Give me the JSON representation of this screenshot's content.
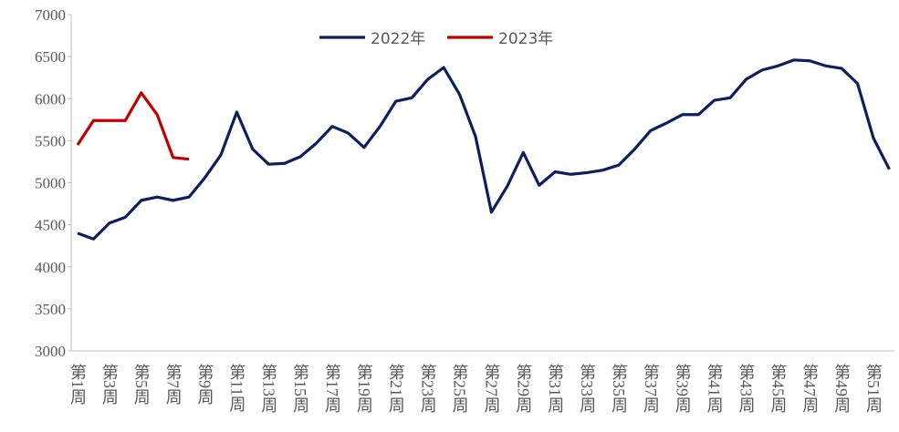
{
  "chart_data": {
    "type": "line",
    "categories": [
      "第1周",
      null,
      "第3周",
      null,
      "第5周",
      null,
      "第7周",
      null,
      "第9周",
      null,
      "第11周",
      null,
      "第13周",
      null,
      "第15周",
      null,
      "第17周",
      null,
      "第19周",
      null,
      "第21周",
      null,
      "第23周",
      null,
      "第25周",
      null,
      "第27周",
      null,
      "第29周",
      null,
      "第31周",
      null,
      "第33周",
      null,
      "第35周",
      null,
      "第37周",
      null,
      "第39周",
      null,
      "第41周",
      null,
      "第43周",
      null,
      "第45周",
      null,
      "第47周",
      null,
      "第49周",
      null,
      "第51周",
      null
    ],
    "series": [
      {
        "name": "2022年",
        "color": "#0d1f5c",
        "values": [
          4400,
          4330,
          4520,
          4590,
          4790,
          4830,
          4790,
          4830,
          5060,
          5330,
          5840,
          5400,
          5220,
          5230,
          5310,
          5470,
          5670,
          5590,
          5420,
          5670,
          5970,
          6010,
          6230,
          6370,
          6050,
          5550,
          4650,
          4960,
          5360,
          4970,
          5130,
          5100,
          5120,
          5150,
          5210,
          5400,
          5620,
          5710,
          5810,
          5810,
          5980,
          6010,
          6230,
          6340,
          6390,
          6460,
          6450,
          6390,
          6360,
          6180,
          5530,
          5160
        ]
      },
      {
        "name": "2023年",
        "color": "#c00000",
        "values": [
          5450,
          5740,
          5740,
          5740,
          6070,
          5810,
          5300,
          5280,
          null,
          null,
          null,
          null,
          null,
          null,
          null,
          null,
          null,
          null,
          null,
          null,
          null,
          null,
          null,
          null,
          null,
          null,
          null,
          null,
          null,
          null,
          null,
          null,
          null,
          null,
          null,
          null,
          null,
          null,
          null,
          null,
          null,
          null,
          null,
          null,
          null,
          null,
          null,
          null,
          null,
          null,
          null,
          null
        ]
      }
    ],
    "ylim": [
      3000,
      7000
    ],
    "yticks": [
      3000,
      3500,
      4000,
      4500,
      5000,
      5500,
      6000,
      6500,
      7000
    ],
    "grid": false,
    "legend": "top"
  }
}
